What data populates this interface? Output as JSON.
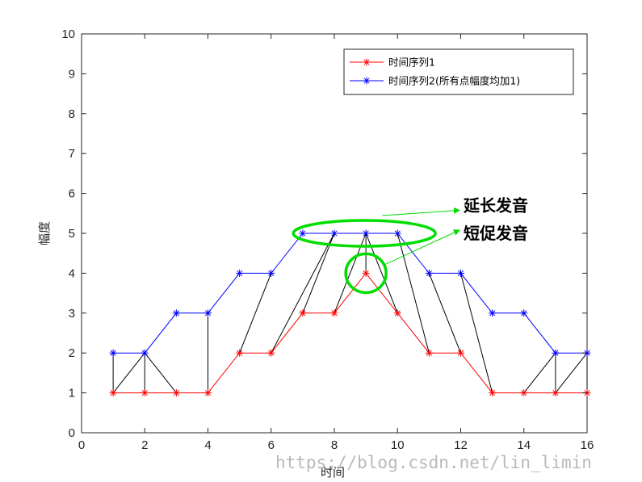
{
  "chart_data": {
    "type": "line",
    "x": [
      1,
      2,
      3,
      4,
      5,
      6,
      7,
      8,
      9,
      10,
      11,
      12,
      13,
      14,
      15,
      16
    ],
    "series": [
      {
        "name": "时间序列1",
        "color": "#ff0000",
        "marker": "asterisk",
        "values": [
          1,
          1,
          1,
          1,
          2,
          2,
          3,
          3,
          4,
          3,
          2,
          2,
          1,
          1,
          1,
          1
        ]
      },
      {
        "name": "时间序列2(所有点幅度均加1)",
        "color": "#0000ff",
        "marker": "asterisk",
        "values": [
          2,
          2,
          3,
          3,
          4,
          4,
          5,
          5,
          5,
          5,
          4,
          4,
          3,
          3,
          2,
          2
        ]
      }
    ],
    "alignment_links": [
      [
        1,
        1
      ],
      [
        1,
        2
      ],
      [
        2,
        2
      ],
      [
        3,
        2
      ],
      [
        4,
        4
      ],
      [
        5,
        6
      ],
      [
        6,
        8
      ],
      [
        7,
        8
      ],
      [
        8,
        9
      ],
      [
        9,
        9
      ],
      [
        10,
        9
      ],
      [
        11,
        10
      ],
      [
        12,
        11
      ],
      [
        13,
        12
      ],
      [
        14,
        15
      ],
      [
        15,
        15
      ],
      [
        15,
        16
      ],
      [
        16,
        16
      ]
    ],
    "link_color": "#000000",
    "xlabel": "时间",
    "ylabel": "幅度",
    "xlim": [
      0,
      16
    ],
    "ylim": [
      0,
      10
    ],
    "xticks": [
      0,
      2,
      4,
      6,
      8,
      10,
      12,
      14,
      16
    ],
    "yticks": [
      0,
      1,
      2,
      3,
      4,
      5,
      6,
      7,
      8,
      9,
      10
    ],
    "grid": false,
    "legend_position": "top-right",
    "annotations": [
      {
        "text": "延长发音",
        "color": "#00dd00",
        "shape": "ellipse",
        "center": [
          8.95,
          5.0
        ]
      },
      {
        "text": "短促发音",
        "color": "#00dd00",
        "shape": "circle",
        "center": [
          9.0,
          4.0
        ]
      }
    ]
  },
  "watermark": "https://blog.csdn.net/lin_limin"
}
